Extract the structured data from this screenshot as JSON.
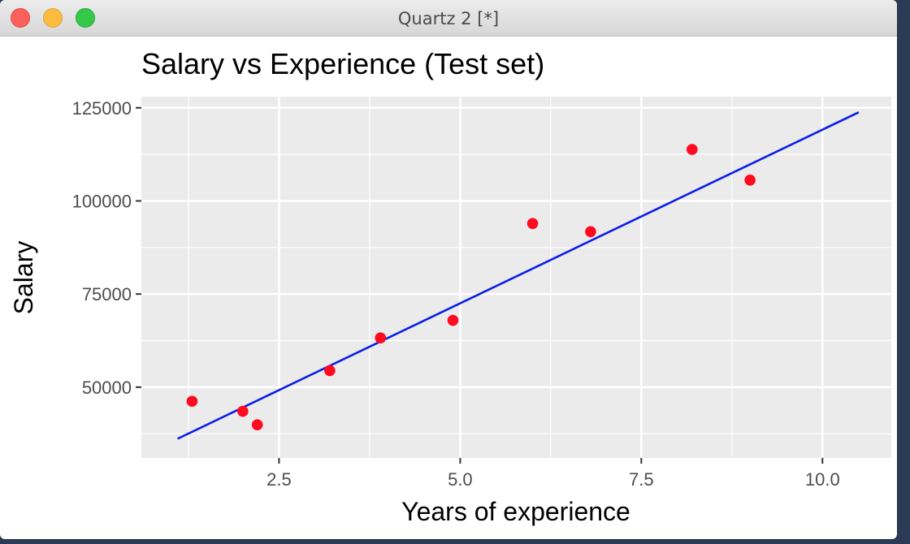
{
  "window": {
    "title": "Quartz 2 [*]",
    "close_color": "#fc605c",
    "minimize_color": "#fdbc40",
    "zoom_color": "#34c84a"
  },
  "chart_data": {
    "type": "scatter",
    "title": "Salary vs Experience (Test set)",
    "xlabel": "Years of experience",
    "ylabel": "Salary",
    "xlim": [
      0.6,
      10.95
    ],
    "ylim": [
      31000,
      128000
    ],
    "x_ticks": [
      2.5,
      5.0,
      7.5,
      10.0
    ],
    "x_tick_labels": [
      "2.5",
      "5.0",
      "7.5",
      "10.0"
    ],
    "y_ticks": [
      50000,
      75000,
      100000,
      125000
    ],
    "y_tick_labels": [
      "50000",
      "75000",
      "100000",
      "125000"
    ],
    "grid": true,
    "panel_color": "#ebebeb",
    "grid_color": "#ffffff",
    "series": [
      {
        "type": "scatter",
        "color": "#ff0a1e",
        "points": [
          {
            "x": 1.3,
            "y": 46205
          },
          {
            "x": 2.0,
            "y": 43525
          },
          {
            "x": 2.2,
            "y": 39891
          },
          {
            "x": 3.2,
            "y": 54445
          },
          {
            "x": 3.9,
            "y": 63218
          },
          {
            "x": 4.9,
            "y": 67938
          },
          {
            "x": 6.0,
            "y": 93940
          },
          {
            "x": 6.8,
            "y": 91738
          },
          {
            "x": 8.2,
            "y": 113812
          },
          {
            "x": 9.0,
            "y": 105582
          }
        ]
      },
      {
        "type": "line",
        "color": "#0a1ee8",
        "points": [
          {
            "x": 1.1,
            "y": 36150
          },
          {
            "x": 10.5,
            "y": 123800
          }
        ]
      }
    ]
  }
}
